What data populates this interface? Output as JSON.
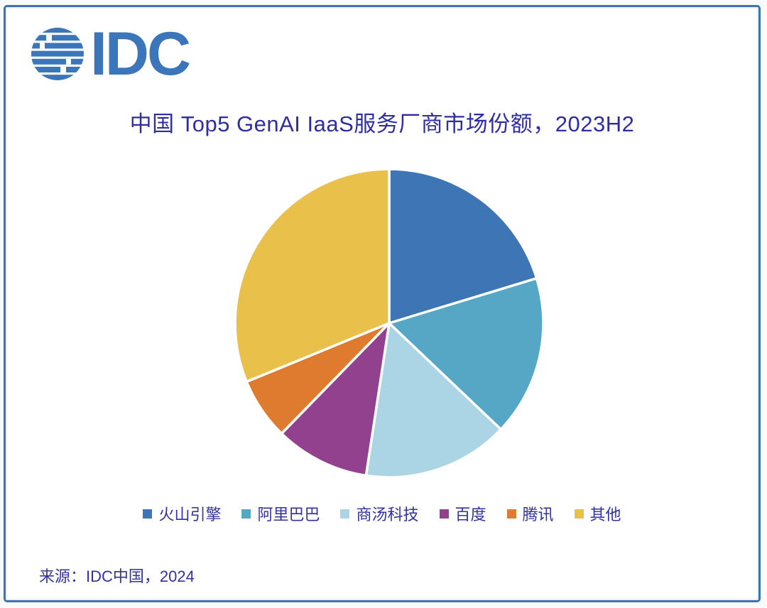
{
  "window": {
    "background": "#FAFAFA",
    "card_background": "#FFFFFF",
    "card_border_color": "#3C73B1"
  },
  "logo": {
    "text": "IDC",
    "color": "#3B76BA"
  },
  "chart_data": {
    "type": "pie",
    "title": "中国 Top5 GenAI IaaS服务厂商市场份额，2023H2",
    "title_color": "#2E2EA2",
    "unit": "%",
    "start_angle": "12-o-clock",
    "direction": "clockwise",
    "legend_position": "bottom",
    "slice_divider_color": "#FFFFFF",
    "data_labels_shown": false,
    "series": [
      {
        "name": "火山引擎",
        "value": 20.3,
        "color": "#3E76B5"
      },
      {
        "name": "阿里巴巴",
        "value": 16.8,
        "color": "#55A7C5"
      },
      {
        "name": "商汤科技",
        "value": 15.3,
        "color": "#ABD5E4"
      },
      {
        "name": "百度",
        "value": 9.9,
        "color": "#92418F"
      },
      {
        "name": "腾讯",
        "value": 6.5,
        "color": "#DF7B2F"
      },
      {
        "name": "其他",
        "value": 31.2,
        "color": "#E9C14A"
      }
    ]
  },
  "source": {
    "text": "来源：IDC中国，2024"
  }
}
